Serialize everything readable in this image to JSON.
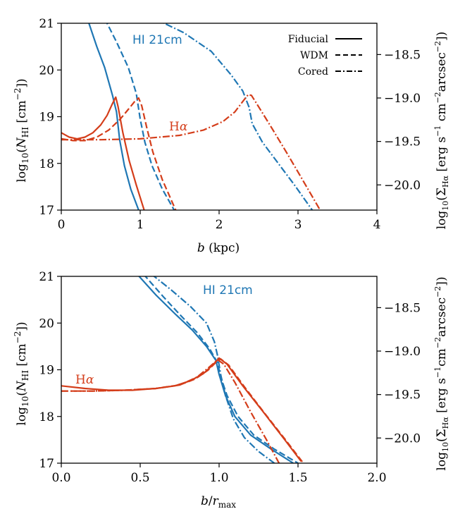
{
  "colors": {
    "hi": "#1f77b4",
    "halpha": "#d43d1a",
    "axis": "#000000"
  },
  "legend": {
    "entries": [
      {
        "label": "Fiducial",
        "dash": "solid"
      },
      {
        "label": "WDM",
        "dash": "dashed"
      },
      {
        "label": "Cored",
        "dash": "dashdot"
      }
    ],
    "placement": "top-right of top panel"
  },
  "chart_data": [
    {
      "type": "line",
      "panel": "top",
      "xlabel": "b (kpc)",
      "ylabel_left": "log10(N_HI [cm^-2])",
      "ylabel_right": "log10(Σ_Hα [erg s^-1 cm^-2 arcsec^-2])",
      "xlim": [
        0,
        4
      ],
      "ylim_left": [
        17,
        21
      ],
      "ylim_right": [
        -20.29,
        -18.14
      ],
      "xticks": [
        "0",
        "1",
        "2",
        "3",
        "4"
      ],
      "yticks_left": [
        "17",
        "18",
        "19",
        "20",
        "21"
      ],
      "yticks_right": [
        "−18.5",
        "−19.0",
        "−19.5",
        "−20.0"
      ],
      "yticks_right_values": [
        -18.5,
        -19.0,
        -19.5,
        -20.0
      ],
      "annotations": [
        "HI 21cm",
        "Hα"
      ],
      "series": [
        {
          "name": "Fiducial",
          "group": "HI",
          "axis": "left",
          "style": "solid",
          "x": [
            0.33,
            0.45,
            0.55,
            0.65,
            0.7,
            0.74,
            0.8,
            0.88,
            0.98
          ],
          "y": [
            21.1,
            20.5,
            20.05,
            19.45,
            19.1,
            18.5,
            17.95,
            17.45,
            17.0
          ]
        },
        {
          "name": "WDM",
          "group": "HI",
          "axis": "left",
          "style": "dashed",
          "x": [
            0.55,
            0.7,
            0.85,
            0.95,
            1.0,
            1.06,
            1.15,
            1.28,
            1.43
          ],
          "y": [
            21.1,
            20.6,
            20.05,
            19.5,
            18.95,
            18.45,
            17.95,
            17.45,
            17.0
          ]
        },
        {
          "name": "Cored",
          "group": "HI",
          "axis": "left",
          "style": "dashdot",
          "x": [
            1.18,
            1.55,
            1.9,
            2.15,
            2.3,
            2.38,
            2.42,
            2.55,
            2.75,
            2.95,
            3.18
          ],
          "y": [
            21.1,
            20.8,
            20.4,
            19.9,
            19.55,
            19.2,
            18.85,
            18.45,
            18.0,
            17.55,
            17.0
          ]
        },
        {
          "name": "Fiducial",
          "group": "Halpha",
          "axis": "right",
          "style": "solid",
          "x": [
            0.0,
            0.1,
            0.2,
            0.3,
            0.4,
            0.5,
            0.58,
            0.64,
            0.69,
            0.72,
            0.78,
            0.86,
            0.95,
            1.05
          ],
          "y": [
            -19.4,
            -19.45,
            -19.47,
            -19.45,
            -19.4,
            -19.31,
            -19.2,
            -19.08,
            -18.99,
            -19.1,
            -19.4,
            -19.72,
            -20.0,
            -20.29
          ]
        },
        {
          "name": "WDM",
          "group": "Halpha",
          "axis": "right",
          "style": "dashed",
          "x": [
            0.0,
            0.15,
            0.3,
            0.45,
            0.6,
            0.75,
            0.85,
            0.93,
            0.98,
            1.02,
            1.08,
            1.16,
            1.28,
            1.45
          ],
          "y": [
            -19.47,
            -19.49,
            -19.49,
            -19.45,
            -19.37,
            -19.24,
            -19.13,
            -19.04,
            -19.0,
            -19.09,
            -19.33,
            -19.62,
            -19.94,
            -20.29
          ]
        },
        {
          "name": "Cored",
          "group": "Halpha",
          "axis": "right",
          "style": "dashdot",
          "x": [
            0.0,
            0.5,
            1.0,
            1.5,
            1.8,
            2.05,
            2.2,
            2.3,
            2.37,
            2.41,
            2.5,
            2.65,
            2.85,
            3.05,
            3.28
          ],
          "y": [
            -19.48,
            -19.48,
            -19.47,
            -19.43,
            -19.37,
            -19.27,
            -19.16,
            -19.04,
            -18.96,
            -18.97,
            -19.1,
            -19.32,
            -19.62,
            -19.93,
            -20.29
          ]
        }
      ]
    },
    {
      "type": "line",
      "panel": "bottom",
      "xlabel": "b / r_max",
      "ylabel_left": "log10(N_HI [cm^-2])",
      "ylabel_right": "log10(Σ_Hα [erg s^-1 cm^-2 arcsec^-2])",
      "xlim": [
        0,
        2
      ],
      "ylim_left": [
        17,
        21
      ],
      "ylim_right": [
        -20.29,
        -18.14
      ],
      "xticks": [
        "0.0",
        "0.5",
        "1.0",
        "1.5",
        "2.0"
      ],
      "yticks_left": [
        "17",
        "18",
        "19",
        "20",
        "21"
      ],
      "yticks_right": [
        "−18.5",
        "−19.0",
        "−19.5",
        "−20.0"
      ],
      "yticks_right_values": [
        -18.5,
        -19.0,
        -19.5,
        -20.0
      ],
      "annotations": [
        "HI 21cm",
        "Hα"
      ],
      "series": [
        {
          "name": "Fiducial",
          "group": "HI",
          "axis": "left",
          "style": "solid",
          "x": [
            0.48,
            0.6,
            0.72,
            0.83,
            0.92,
            0.98,
            1.0,
            1.04,
            1.1,
            1.2,
            1.33,
            1.47
          ],
          "y": [
            21.05,
            20.6,
            20.2,
            19.85,
            19.5,
            19.2,
            18.9,
            18.45,
            18.0,
            17.6,
            17.3,
            17.0
          ]
        },
        {
          "name": "WDM",
          "group": "HI",
          "axis": "left",
          "style": "dashed",
          "x": [
            0.52,
            0.65,
            0.76,
            0.86,
            0.94,
            0.99,
            1.01,
            1.05,
            1.12,
            1.22,
            1.35,
            1.5
          ],
          "y": [
            21.05,
            20.55,
            20.15,
            19.8,
            19.45,
            19.15,
            18.85,
            18.45,
            18.0,
            17.6,
            17.3,
            17.0
          ]
        },
        {
          "name": "Cored",
          "group": "HI",
          "axis": "left",
          "style": "dashdot",
          "x": [
            0.57,
            0.7,
            0.82,
            0.92,
            0.97,
            0.99,
            1.01,
            1.04,
            1.09,
            1.16,
            1.25,
            1.35
          ],
          "y": [
            21.05,
            20.7,
            20.35,
            20.0,
            19.6,
            19.3,
            18.9,
            18.45,
            17.95,
            17.55,
            17.25,
            17.0
          ]
        },
        {
          "name": "Fiducial",
          "group": "Halpha",
          "axis": "right",
          "style": "solid",
          "x": [
            0.0,
            0.15,
            0.3,
            0.45,
            0.6,
            0.72,
            0.82,
            0.9,
            0.96,
            1.0,
            1.05,
            1.15,
            1.28,
            1.42,
            1.52
          ],
          "y": [
            -19.4,
            -19.43,
            -19.45,
            -19.45,
            -19.43,
            -19.4,
            -19.34,
            -19.26,
            -19.16,
            -19.08,
            -19.15,
            -19.4,
            -19.7,
            -20.03,
            -20.27
          ]
        },
        {
          "name": "WDM",
          "group": "Halpha",
          "axis": "right",
          "style": "dashed",
          "x": [
            0.0,
            0.2,
            0.4,
            0.6,
            0.75,
            0.85,
            0.93,
            0.98,
            1.01,
            1.06,
            1.16,
            1.29,
            1.42,
            1.53
          ],
          "y": [
            -19.46,
            -19.46,
            -19.45,
            -19.43,
            -19.39,
            -19.32,
            -19.22,
            -19.13,
            -19.09,
            -19.16,
            -19.41,
            -19.72,
            -20.02,
            -20.28
          ]
        },
        {
          "name": "Cored",
          "group": "Halpha",
          "axis": "right",
          "style": "dashdot",
          "x": [
            0.0,
            0.2,
            0.4,
            0.6,
            0.75,
            0.86,
            0.94,
            0.99,
            1.03,
            1.1,
            1.2,
            1.3,
            1.38
          ],
          "y": [
            -19.46,
            -19.46,
            -19.45,
            -19.43,
            -19.39,
            -19.3,
            -19.18,
            -19.1,
            -19.15,
            -19.36,
            -19.7,
            -20.02,
            -20.29
          ]
        }
      ]
    }
  ]
}
